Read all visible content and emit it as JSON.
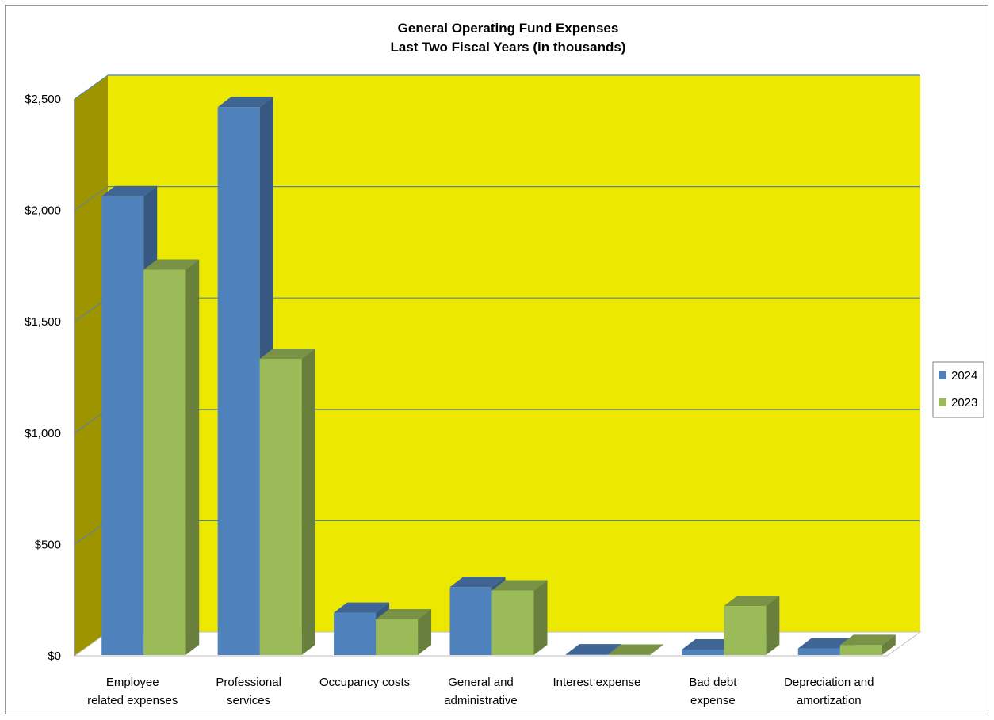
{
  "chart_data": {
    "type": "bar",
    "title": [
      "General Operating Fund Expenses",
      "Last Two  Fiscal Years (in thousands)"
    ],
    "categories": [
      [
        "Employee",
        "related expenses"
      ],
      [
        "Professional",
        "services"
      ],
      [
        "Occupancy costs"
      ],
      [
        "General and",
        "administrative"
      ],
      [
        "Interest expense"
      ],
      [
        "Bad debt",
        "expense"
      ],
      [
        "Depreciation and",
        "amortization"
      ]
    ],
    "series": [
      {
        "name": "2024",
        "color": "#4f81bd",
        "values": [
          2060,
          2460,
          190,
          305,
          3,
          25,
          30
        ]
      },
      {
        "name": "2023",
        "color": "#9bbb59",
        "values": [
          1730,
          1330,
          160,
          290,
          2,
          220,
          45
        ]
      }
    ],
    "yticks": [
      "$0",
      "$500",
      "$1,000",
      "$1,500",
      "$2,000",
      "$2,500"
    ],
    "ylim": [
      0,
      2500
    ],
    "grid": true,
    "legend": "right",
    "colors": {
      "wall": "#ede800",
      "side_wall": "#9e9400",
      "floor": "#ffffff",
      "grid": "#4f81bd"
    }
  }
}
